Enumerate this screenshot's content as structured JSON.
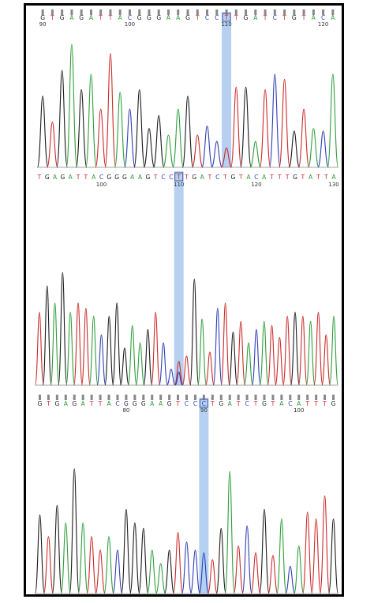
{
  "colors": {
    "A": "#2e9e3c",
    "C": "#2f3fb4",
    "G": "#1c1c1c",
    "T": "#cc2a2a",
    "highlight": "#a9c8f0",
    "base_box": "#4a55a8",
    "tick": "#888888"
  },
  "chart_data": [
    {
      "type": "line",
      "title": "",
      "sequence": "GTGAGATTACGGGAAGTCCTTGATCTGTACA",
      "highlighted_base": {
        "index": 19,
        "base": "T",
        "position": 110
      },
      "position_labels": [
        {
          "value": "90",
          "index": 0
        },
        {
          "value": "100",
          "index": 9
        },
        {
          "value": "110",
          "index": 19
        },
        {
          "value": "120",
          "index": 29
        }
      ],
      "peak_heights": [
        0.55,
        0.35,
        0.75,
        0.95,
        0.6,
        0.72,
        0.45,
        0.88,
        0.58,
        0.45,
        0.6,
        0.3,
        0.4,
        0.25,
        0.45,
        0.55,
        0.25,
        0.32,
        0.2,
        0.15,
        0.62,
        0.62,
        0.2,
        0.6,
        0.72,
        0.68,
        0.28,
        0.45,
        0.3,
        0.28,
        0.72
      ],
      "grid": false
    },
    {
      "type": "line",
      "title": "",
      "sequence": "TGAGATTACGGGAAGTCCTTGATCTGTACATTTGTATTA",
      "highlighted_base": {
        "index": 18,
        "base": "T",
        "position": 110
      },
      "position_labels": [
        {
          "value": "100",
          "index": 8
        },
        {
          "value": "110",
          "index": 18
        },
        {
          "value": "120",
          "index": 28
        },
        {
          "value": "130",
          "index": 38
        }
      ],
      "peak_heights": [
        0.55,
        0.75,
        0.62,
        0.85,
        0.55,
        0.62,
        0.58,
        0.52,
        0.38,
        0.52,
        0.62,
        0.28,
        0.45,
        0.32,
        0.42,
        0.55,
        0.32,
        0.12,
        0.18,
        0.22,
        0.8,
        0.5,
        0.25,
        0.58,
        0.62,
        0.4,
        0.48,
        0.32,
        0.42,
        0.48,
        0.45,
        0.36,
        0.52,
        0.55,
        0.52,
        0.48,
        0.55,
        0.38,
        0.52
      ],
      "grid": false
    },
    {
      "type": "line",
      "title": "",
      "sequence": "GTGAGATTACGGGAAGTCCCTGATCTGTACATTTG",
      "highlighted_base": {
        "index": 19,
        "base": "C",
        "position": 90
      },
      "position_labels": [
        {
          "value": "80",
          "index": 10
        },
        {
          "value": "90",
          "index": 19
        },
        {
          "value": "100",
          "index": 30
        }
      ],
      "peak_heights": [
        0.58,
        0.42,
        0.65,
        0.52,
        0.92,
        0.52,
        0.42,
        0.32,
        0.42,
        0.32,
        0.62,
        0.52,
        0.48,
        0.32,
        0.22,
        0.32,
        0.45,
        0.38,
        0.32,
        0.3,
        0.25,
        0.48,
        0.9,
        0.35,
        0.5,
        0.3,
        0.62,
        0.28,
        0.55,
        0.2,
        0.35,
        0.6,
        0.55,
        0.72,
        0.55
      ],
      "grid": false
    }
  ]
}
